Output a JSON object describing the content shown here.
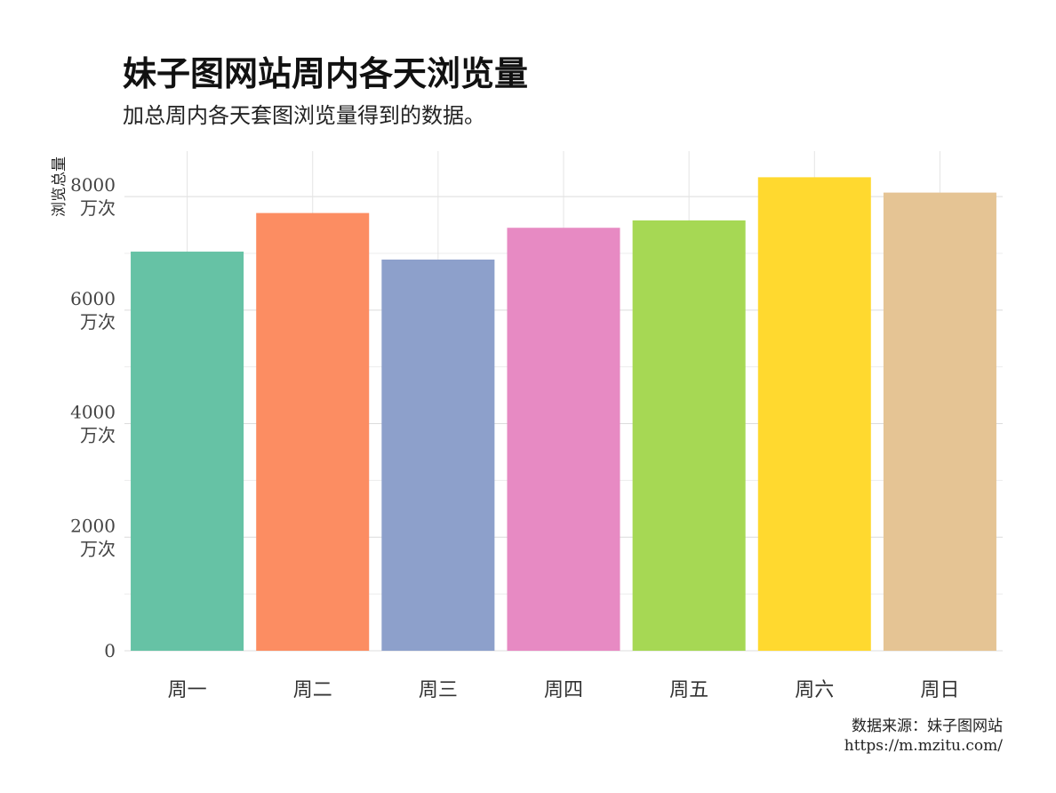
{
  "title": "妹子图网站周内各天浏览量",
  "subtitle": "加总周内各天套图浏览量得到的数据。",
  "caption": {
    "line1": "数据来源：妹子图网站",
    "line2": "https://m.mzitu.com/"
  },
  "chart_data": {
    "type": "bar",
    "categories": [
      "周一",
      "周二",
      "周三",
      "周四",
      "周五",
      "周六",
      "周日"
    ],
    "values": [
      7030,
      7710,
      6890,
      7450,
      7580,
      8340,
      8070
    ],
    "colors": [
      "#66c2a5",
      "#fc8d62",
      "#8da0cb",
      "#e78ac3",
      "#a6d854",
      "#ffd92f",
      "#e5c494"
    ],
    "ylabel": "浏览总量",
    "ylim": [
      0,
      8800
    ],
    "yticks": [
      {
        "value": 0,
        "label": "0",
        "unit": ""
      },
      {
        "value": 2000,
        "label": "2000",
        "unit": "万次"
      },
      {
        "value": 4000,
        "label": "4000",
        "unit": "万次"
      },
      {
        "value": 6000,
        "label": "6000",
        "unit": "万次"
      },
      {
        "value": 8000,
        "label": "8000",
        "unit": "万次"
      }
    ],
    "grid": true
  }
}
